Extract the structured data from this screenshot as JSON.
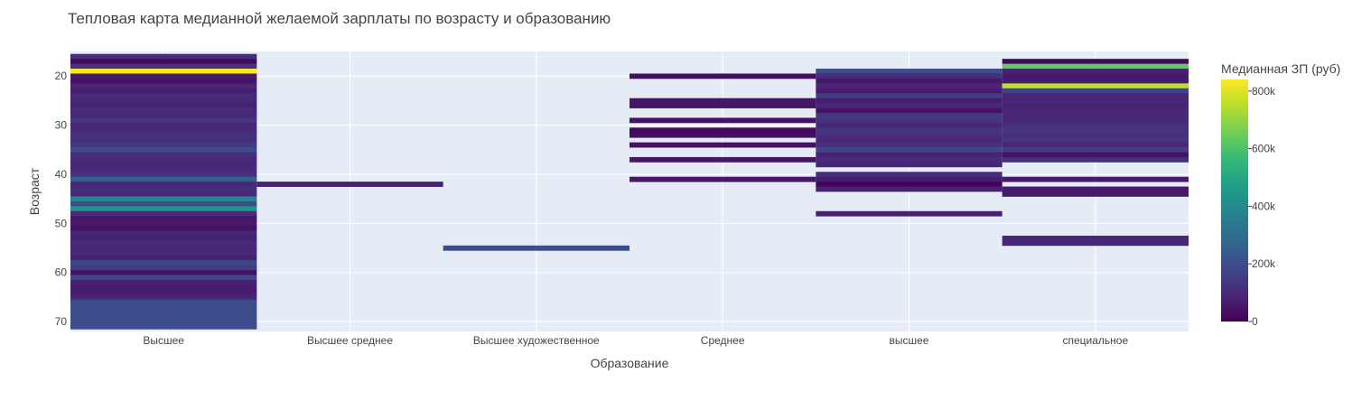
{
  "chart_data": {
    "type": "heatmap",
    "title": "Тепловая карта медианной желаемой зарплаты по возрасту и образованию",
    "xlabel": "Образование",
    "ylabel": "Возраст",
    "categories": [
      "Высшее",
      "Высшее среднее",
      "Высшее художественное",
      "Среднее",
      "высшее",
      "специальное"
    ],
    "y_ticks": [
      20,
      30,
      40,
      50,
      60,
      70
    ],
    "ylim": [
      72,
      15
    ],
    "colorbar": {
      "title": "Медианная ЗП (руб)",
      "ticks": [
        {
          "value": 0,
          "label": "0"
        },
        {
          "value": 200000,
          "label": "200k"
        },
        {
          "value": 400000,
          "label": "400k"
        },
        {
          "value": 600000,
          "label": "600k"
        },
        {
          "value": 800000,
          "label": "800k"
        }
      ],
      "min": 0,
      "max": 840000,
      "colorscale": [
        "#440154",
        "#482878",
        "#3e4989",
        "#31688e",
        "#26828e",
        "#1f9e89",
        "#35b779",
        "#6ece58",
        "#b5de2b",
        "#fde725"
      ]
    },
    "series": [
      {
        "category": "Высшее",
        "cells": [
          [
            16,
            110000
          ],
          [
            17,
            20000
          ],
          [
            18,
            120000
          ],
          [
            19,
            840000
          ],
          [
            20,
            60000
          ],
          [
            21,
            40000
          ],
          [
            22,
            90000
          ],
          [
            23,
            70000
          ],
          [
            24,
            100000
          ],
          [
            25,
            90000
          ],
          [
            26,
            80000
          ],
          [
            27,
            100000
          ],
          [
            28,
            90000
          ],
          [
            29,
            130000
          ],
          [
            30,
            90000
          ],
          [
            31,
            100000
          ],
          [
            32,
            120000
          ],
          [
            33,
            110000
          ],
          [
            34,
            140000
          ],
          [
            35,
            190000
          ],
          [
            36,
            110000
          ],
          [
            37,
            100000
          ],
          [
            38,
            90000
          ],
          [
            39,
            100000
          ],
          [
            40,
            120000
          ],
          [
            41,
            250000
          ],
          [
            42,
            90000
          ],
          [
            43,
            110000
          ],
          [
            44,
            100000
          ],
          [
            45,
            380000
          ],
          [
            46,
            200000
          ],
          [
            47,
            430000
          ],
          [
            48,
            110000
          ],
          [
            49,
            50000
          ],
          [
            50,
            60000
          ],
          [
            51,
            40000
          ],
          [
            52,
            90000
          ],
          [
            53,
            80000
          ],
          [
            54,
            100000
          ],
          [
            55,
            90000
          ],
          [
            56,
            100000
          ],
          [
            57,
            80000
          ],
          [
            58,
            180000
          ],
          [
            59,
            150000
          ],
          [
            60,
            40000
          ],
          [
            61,
            190000
          ],
          [
            62,
            80000
          ],
          [
            63,
            70000
          ],
          [
            64,
            70000
          ],
          [
            65,
            90000
          ],
          [
            66,
            200000
          ],
          [
            67,
            200000
          ],
          [
            68,
            200000
          ],
          [
            69,
            200000
          ],
          [
            70,
            200000
          ],
          [
            71,
            200000
          ]
        ]
      },
      {
        "category": "Высшее среднее",
        "cells": [
          [
            42,
            80000
          ]
        ]
      },
      {
        "category": "Высшее художественное",
        "cells": [
          [
            55,
            200000
          ]
        ]
      },
      {
        "category": "Среднее",
        "cells": [
          [
            20,
            30000
          ],
          [
            25,
            50000
          ],
          [
            26,
            50000
          ],
          [
            29,
            40000
          ],
          [
            31,
            20000
          ],
          [
            32,
            30000
          ],
          [
            34,
            40000
          ],
          [
            37,
            50000
          ],
          [
            41,
            50000
          ]
        ]
      },
      {
        "category": "высшее",
        "cells": [
          [
            19,
            200000
          ],
          [
            20,
            110000
          ],
          [
            21,
            50000
          ],
          [
            22,
            90000
          ],
          [
            23,
            60000
          ],
          [
            24,
            150000
          ],
          [
            25,
            70000
          ],
          [
            26,
            90000
          ],
          [
            27,
            40000
          ],
          [
            28,
            140000
          ],
          [
            29,
            130000
          ],
          [
            30,
            90000
          ],
          [
            31,
            130000
          ],
          [
            32,
            110000
          ],
          [
            33,
            90000
          ],
          [
            34,
            120000
          ],
          [
            35,
            180000
          ],
          [
            36,
            80000
          ],
          [
            37,
            100000
          ],
          [
            38,
            90000
          ],
          [
            40,
            110000
          ],
          [
            41,
            70000
          ],
          [
            42,
            10000
          ],
          [
            43,
            80000
          ],
          [
            48,
            80000
          ]
        ]
      },
      {
        "category": "специальное",
        "cells": [
          [
            17,
            20000
          ],
          [
            18,
            630000
          ],
          [
            19,
            80000
          ],
          [
            20,
            60000
          ],
          [
            21,
            70000
          ],
          [
            22,
            760000
          ],
          [
            23,
            170000
          ],
          [
            24,
            90000
          ],
          [
            25,
            90000
          ],
          [
            26,
            80000
          ],
          [
            27,
            90000
          ],
          [
            28,
            100000
          ],
          [
            29,
            90000
          ],
          [
            30,
            110000
          ],
          [
            31,
            130000
          ],
          [
            32,
            110000
          ],
          [
            33,
            130000
          ],
          [
            34,
            90000
          ],
          [
            35,
            150000
          ],
          [
            36,
            40000
          ],
          [
            37,
            110000
          ],
          [
            41,
            60000
          ],
          [
            43,
            60000
          ],
          [
            44,
            60000
          ],
          [
            53,
            90000
          ],
          [
            54,
            90000
          ]
        ]
      }
    ]
  }
}
